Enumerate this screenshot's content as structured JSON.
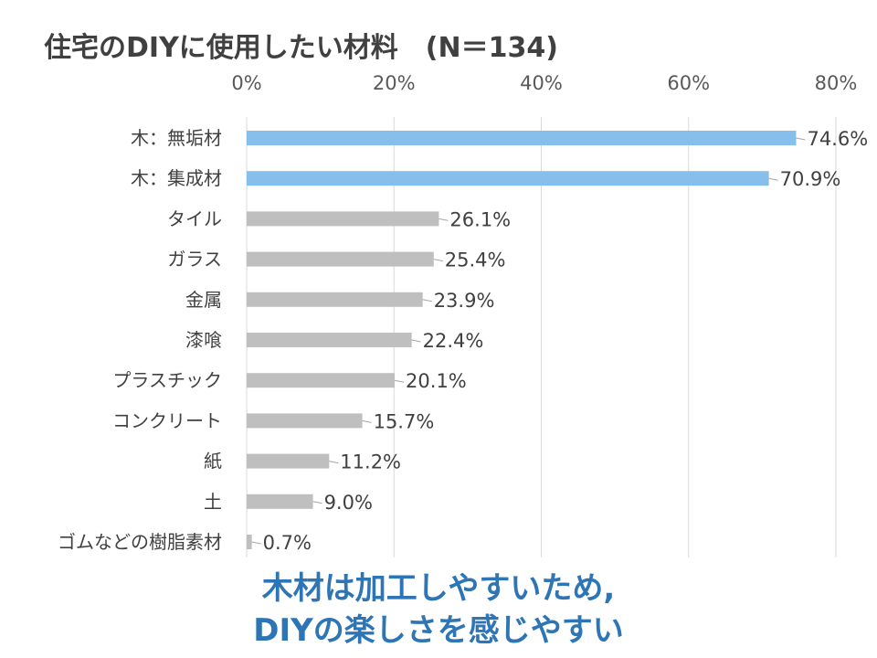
{
  "chart_data": {
    "type": "bar",
    "orientation": "horizontal",
    "title": "住宅のDIYに使用したい材料　(N＝134)",
    "xlim": [
      0,
      80
    ],
    "x_ticks": [
      "0%",
      "20%",
      "40%",
      "60%",
      "80%"
    ],
    "grid": true,
    "categories": [
      "木：無垢材",
      "木：集成材",
      "タイル",
      "ガラス",
      "金属",
      "漆喰",
      "プラスチック",
      "コンクリート",
      "紙",
      "土",
      "ゴムなどの樹脂素材"
    ],
    "values": [
      74.6,
      70.9,
      26.1,
      25.4,
      23.9,
      22.4,
      20.1,
      15.7,
      11.2,
      9.0,
      0.7
    ],
    "value_labels": [
      "74.6%",
      "70.9%",
      "26.1%",
      "25.4%",
      "23.9%",
      "22.4%",
      "20.1%",
      "15.7%",
      "11.2%",
      "9.0%",
      "0.7%"
    ],
    "colors": [
      "#86BFEB",
      "#86BFEB",
      "#BFBFBF",
      "#BFBFBF",
      "#BFBFBF",
      "#BFBFBF",
      "#BFBFBF",
      "#BFBFBF",
      "#BFBFBF",
      "#BFBFBF",
      "#BFBFBF"
    ]
  },
  "caption": {
    "line1": "木材は加工しやすいため,",
    "line2": "DIYの楽しさを感じやすい",
    "color": "#2E75B6"
  }
}
